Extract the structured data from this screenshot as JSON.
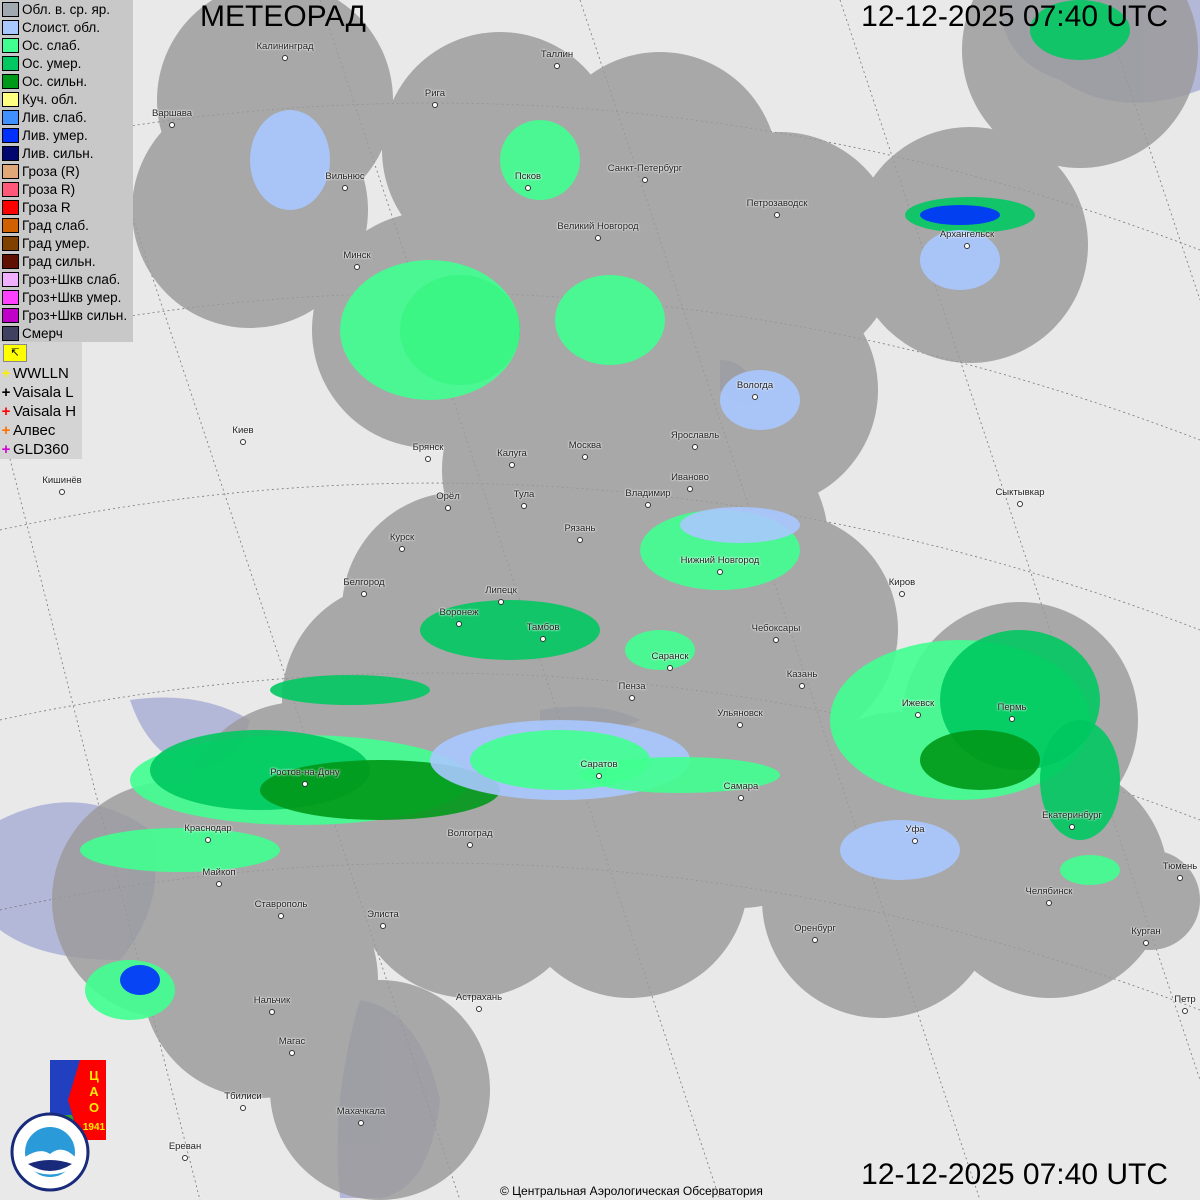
{
  "title": "МЕТЕОРАД",
  "timestamp_top": "12-12-2025  07:40 UTC",
  "timestamp_bottom": "12-12-2025  07:40 UTC",
  "copyright": "© Центральная Аэрологическая Обсерватория",
  "logos": {
    "cao": "ЦАО 1941",
    "roshydromet": "РОСГИДРОМЕТ ROSHYDROMET"
  },
  "legend": [
    {
      "label": "Обл. в. ср. яр.",
      "color": "#a0a8b0"
    },
    {
      "label": "Слоист. обл.",
      "color": "#a8c8ff"
    },
    {
      "label": "Ос. слаб.",
      "color": "#40ff90"
    },
    {
      "label": "Ос. умер.",
      "color": "#00c860"
    },
    {
      "label": "Ос. сильн.",
      "color": "#009818"
    },
    {
      "label": "Куч. обл.",
      "color": "#ffff80"
    },
    {
      "label": "Лив. слаб.",
      "color": "#4090ff"
    },
    {
      "label": "Лив. умер.",
      "color": "#0030ff"
    },
    {
      "label": "Лив. сильн.",
      "color": "#000870"
    },
    {
      "label": "Гроза (R)",
      "color": "#e0a878"
    },
    {
      "label": "Гроза R)",
      "color": "#ff5878"
    },
    {
      "label": "Гроза R",
      "color": "#ff0000"
    },
    {
      "label": "Град слаб.",
      "color": "#d06000"
    },
    {
      "label": "Град умер.",
      "color": "#804000"
    },
    {
      "label": "Град сильн.",
      "color": "#601000"
    },
    {
      "label": "Гроз+Шкв слаб.",
      "color": "#f0b0ff"
    },
    {
      "label": "Гроз+Шкв умер.",
      "color": "#ff40ff"
    },
    {
      "label": "Гроз+Шкв сильн.",
      "color": "#c000c8"
    },
    {
      "label": "Смерч",
      "color": "#404060"
    }
  ],
  "lightning": {
    "flag_icon": "lightning-toggle-icon",
    "items": [
      {
        "label": "WWLLN",
        "color": "#ffee00"
      },
      {
        "label": "Vaisala L",
        "color": "#000000"
      },
      {
        "label": "Vaisala H",
        "color": "#ff0000"
      },
      {
        "label": "Алвес",
        "color": "#ff7000"
      },
      {
        "label": "GLD360",
        "color": "#d000d0"
      }
    ]
  },
  "cities": [
    "Калининград",
    "Таллин",
    "Рига",
    "Варшава",
    "Санкт-Петербург",
    "Псков",
    "Вильнюс",
    "Великий Новгород",
    "Петрозаводск",
    "Архангельск",
    "Минск",
    "Вологда",
    "Киев",
    "Ярославль",
    "Брянск",
    "Калуга",
    "Москва",
    "Иваново",
    "Кишинёв",
    "Орёл",
    "Тула",
    "Владимир",
    "Сыктывкар",
    "Рязань",
    "Курск",
    "Нижний Новгород",
    "Белгород",
    "Липецк",
    "Киров",
    "Воронеж",
    "Тамбов",
    "Чебоксары",
    "Саранск",
    "Казань",
    "Пенза",
    "Ижевск",
    "Пермь",
    "Ульяновск",
    "Ростов-на-Дону",
    "Саратов",
    "Самара",
    "Краснодар",
    "Волгоград",
    "Екатеринбург",
    "Уфа",
    "Майкоп",
    "Тюмень",
    "Челябинск",
    "Ставрополь",
    "Элиста",
    "Оренбург",
    "Курган",
    "Астрахань",
    "Нальчик",
    "Магас",
    "Тбилиси",
    "Махачкала",
    "Ереван",
    "Петр"
  ],
  "colors": {
    "land": "#e9e9e9",
    "water": "#b4b8d8",
    "radar_coverage": "#9a9a9a"
  }
}
